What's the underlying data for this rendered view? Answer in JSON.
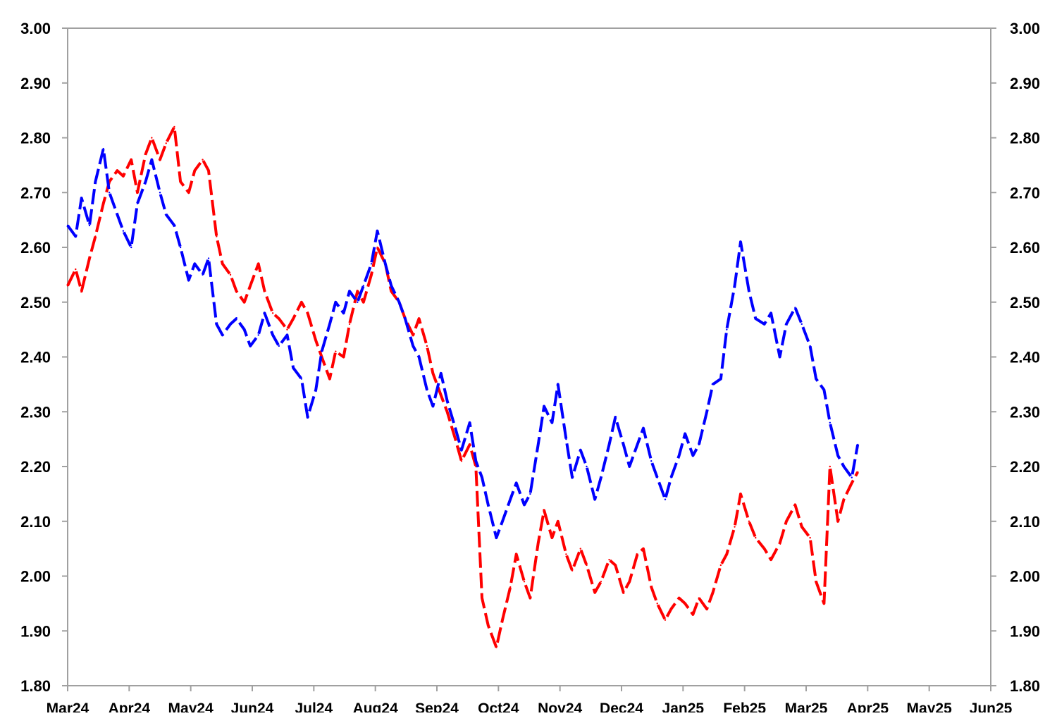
{
  "chart_data": {
    "type": "line",
    "title": "",
    "xlabel": "",
    "ylabel": "",
    "ylim": [
      1.8,
      3.0
    ],
    "y_ticks": [
      "1.80",
      "1.90",
      "2.00",
      "2.10",
      "2.20",
      "2.30",
      "2.40",
      "2.50",
      "2.60",
      "2.70",
      "2.80",
      "2.90",
      "3.00"
    ],
    "y_axis_right_mirror": true,
    "x_ticks": [
      "Mar24",
      "Apr24",
      "May24",
      "Jun24",
      "Jul24",
      "Aug24",
      "Sep24",
      "Oct24",
      "Nov24",
      "Dec24",
      "Jan25",
      "Feb25",
      "Mar25",
      "Apr25",
      "May25",
      "Jun25"
    ],
    "xlim": [
      "Mar24",
      "Jun25"
    ],
    "grid": false,
    "legend": "none",
    "line_style": "dashed",
    "series": [
      {
        "color": "#ff0000",
        "points": [
          [
            "2024-03-01",
            2.53
          ],
          [
            "2024-03-05",
            2.56
          ],
          [
            "2024-03-08",
            2.52
          ],
          [
            "2024-03-12",
            2.58
          ],
          [
            "2024-03-15",
            2.62
          ],
          [
            "2024-03-19",
            2.68
          ],
          [
            "2024-03-22",
            2.72
          ],
          [
            "2024-03-26",
            2.74
          ],
          [
            "2024-03-29",
            2.73
          ],
          [
            "2024-04-02",
            2.76
          ],
          [
            "2024-04-05",
            2.7
          ],
          [
            "2024-04-09",
            2.77
          ],
          [
            "2024-04-12",
            2.8
          ],
          [
            "2024-04-16",
            2.76
          ],
          [
            "2024-04-19",
            2.79
          ],
          [
            "2024-04-23",
            2.82
          ],
          [
            "2024-04-26",
            2.72
          ],
          [
            "2024-04-30",
            2.7
          ],
          [
            "2024-05-03",
            2.74
          ],
          [
            "2024-05-07",
            2.76
          ],
          [
            "2024-05-10",
            2.74
          ],
          [
            "2024-05-14",
            2.62
          ],
          [
            "2024-05-17",
            2.57
          ],
          [
            "2024-05-21",
            2.55
          ],
          [
            "2024-05-24",
            2.52
          ],
          [
            "2024-05-28",
            2.5
          ],
          [
            "2024-05-31",
            2.53
          ],
          [
            "2024-06-04",
            2.57
          ],
          [
            "2024-06-07",
            2.52
          ],
          [
            "2024-06-11",
            2.48
          ],
          [
            "2024-06-14",
            2.47
          ],
          [
            "2024-06-18",
            2.45
          ],
          [
            "2024-06-21",
            2.47
          ],
          [
            "2024-06-25",
            2.5
          ],
          [
            "2024-06-28",
            2.48
          ],
          [
            "2024-07-02",
            2.43
          ],
          [
            "2024-07-05",
            2.4
          ],
          [
            "2024-07-09",
            2.36
          ],
          [
            "2024-07-12",
            2.41
          ],
          [
            "2024-07-16",
            2.4
          ],
          [
            "2024-07-19",
            2.46
          ],
          [
            "2024-07-23",
            2.52
          ],
          [
            "2024-07-26",
            2.5
          ],
          [
            "2024-07-30",
            2.55
          ],
          [
            "2024-08-02",
            2.6
          ],
          [
            "2024-08-06",
            2.57
          ],
          [
            "2024-08-09",
            2.52
          ],
          [
            "2024-08-13",
            2.5
          ],
          [
            "2024-08-16",
            2.47
          ],
          [
            "2024-08-20",
            2.44
          ],
          [
            "2024-08-23",
            2.47
          ],
          [
            "2024-08-27",
            2.42
          ],
          [
            "2024-08-30",
            2.37
          ],
          [
            "2024-09-03",
            2.33
          ],
          [
            "2024-09-06",
            2.3
          ],
          [
            "2024-09-10",
            2.25
          ],
          [
            "2024-09-13",
            2.21
          ],
          [
            "2024-09-17",
            2.24
          ],
          [
            "2024-09-20",
            2.2
          ],
          [
            "2024-09-23",
            1.96
          ],
          [
            "2024-09-26",
            1.91
          ],
          [
            "2024-09-30",
            1.87
          ],
          [
            "2024-10-03",
            1.92
          ],
          [
            "2024-10-07",
            1.98
          ],
          [
            "2024-10-10",
            2.04
          ],
          [
            "2024-10-14",
            1.99
          ],
          [
            "2024-10-17",
            1.96
          ],
          [
            "2024-10-21",
            2.06
          ],
          [
            "2024-10-24",
            2.12
          ],
          [
            "2024-10-28",
            2.07
          ],
          [
            "2024-10-31",
            2.1
          ],
          [
            "2024-11-04",
            2.04
          ],
          [
            "2024-11-07",
            2.01
          ],
          [
            "2024-11-11",
            2.05
          ],
          [
            "2024-11-14",
            2.02
          ],
          [
            "2024-11-18",
            1.97
          ],
          [
            "2024-11-21",
            1.99
          ],
          [
            "2024-11-25",
            2.03
          ],
          [
            "2024-11-28",
            2.02
          ],
          [
            "2024-12-02",
            1.97
          ],
          [
            "2024-12-05",
            1.99
          ],
          [
            "2024-12-09",
            2.04
          ],
          [
            "2024-12-12",
            2.05
          ],
          [
            "2024-12-16",
            1.98
          ],
          [
            "2024-12-19",
            1.95
          ],
          [
            "2024-12-23",
            1.92
          ],
          [
            "2024-12-26",
            1.94
          ],
          [
            "2024-12-30",
            1.96
          ],
          [
            "2025-01-02",
            1.95
          ],
          [
            "2025-01-06",
            1.93
          ],
          [
            "2025-01-09",
            1.96
          ],
          [
            "2025-01-13",
            1.94
          ],
          [
            "2025-01-16",
            1.97
          ],
          [
            "2025-01-20",
            2.02
          ],
          [
            "2025-01-23",
            2.04
          ],
          [
            "2025-01-27",
            2.09
          ],
          [
            "2025-01-30",
            2.15
          ],
          [
            "2025-02-03",
            2.1
          ],
          [
            "2025-02-06",
            2.07
          ],
          [
            "2025-02-10",
            2.05
          ],
          [
            "2025-02-13",
            2.03
          ],
          [
            "2025-02-17",
            2.06
          ],
          [
            "2025-02-20",
            2.1
          ],
          [
            "2025-02-24",
            2.13
          ],
          [
            "2025-02-27",
            2.09
          ],
          [
            "2025-03-03",
            2.07
          ],
          [
            "2025-03-06",
            1.99
          ],
          [
            "2025-03-10",
            1.95
          ],
          [
            "2025-03-13",
            2.2
          ],
          [
            "2025-03-17",
            2.1
          ],
          [
            "2025-03-20",
            2.14
          ],
          [
            "2025-03-24",
            2.17
          ],
          [
            "2025-03-27",
            2.19
          ]
        ]
      },
      {
        "color": "#0000ff",
        "points": [
          [
            "2024-03-01",
            2.64
          ],
          [
            "2024-03-05",
            2.62
          ],
          [
            "2024-03-08",
            2.69
          ],
          [
            "2024-03-12",
            2.64
          ],
          [
            "2024-03-15",
            2.72
          ],
          [
            "2024-03-19",
            2.78
          ],
          [
            "2024-03-22",
            2.7
          ],
          [
            "2024-03-26",
            2.66
          ],
          [
            "2024-03-29",
            2.63
          ],
          [
            "2024-04-02",
            2.6
          ],
          [
            "2024-04-05",
            2.68
          ],
          [
            "2024-04-09",
            2.72
          ],
          [
            "2024-04-12",
            2.76
          ],
          [
            "2024-04-16",
            2.7
          ],
          [
            "2024-04-19",
            2.66
          ],
          [
            "2024-04-23",
            2.64
          ],
          [
            "2024-04-26",
            2.6
          ],
          [
            "2024-04-30",
            2.54
          ],
          [
            "2024-05-03",
            2.57
          ],
          [
            "2024-05-07",
            2.55
          ],
          [
            "2024-05-10",
            2.58
          ],
          [
            "2024-05-14",
            2.46
          ],
          [
            "2024-05-17",
            2.44
          ],
          [
            "2024-05-21",
            2.46
          ],
          [
            "2024-05-24",
            2.47
          ],
          [
            "2024-05-28",
            2.45
          ],
          [
            "2024-05-31",
            2.42
          ],
          [
            "2024-06-04",
            2.44
          ],
          [
            "2024-06-07",
            2.48
          ],
          [
            "2024-06-11",
            2.44
          ],
          [
            "2024-06-14",
            2.42
          ],
          [
            "2024-06-18",
            2.44
          ],
          [
            "2024-06-21",
            2.38
          ],
          [
            "2024-06-25",
            2.36
          ],
          [
            "2024-06-28",
            2.29
          ],
          [
            "2024-07-02",
            2.34
          ],
          [
            "2024-07-05",
            2.41
          ],
          [
            "2024-07-09",
            2.46
          ],
          [
            "2024-07-12",
            2.5
          ],
          [
            "2024-07-16",
            2.48
          ],
          [
            "2024-07-19",
            2.52
          ],
          [
            "2024-07-23",
            2.5
          ],
          [
            "2024-07-26",
            2.53
          ],
          [
            "2024-07-30",
            2.57
          ],
          [
            "2024-08-02",
            2.63
          ],
          [
            "2024-08-06",
            2.57
          ],
          [
            "2024-08-09",
            2.53
          ],
          [
            "2024-08-13",
            2.5
          ],
          [
            "2024-08-16",
            2.47
          ],
          [
            "2024-08-20",
            2.42
          ],
          [
            "2024-08-23",
            2.4
          ],
          [
            "2024-08-27",
            2.34
          ],
          [
            "2024-08-30",
            2.31
          ],
          [
            "2024-09-03",
            2.37
          ],
          [
            "2024-09-06",
            2.32
          ],
          [
            "2024-09-10",
            2.27
          ],
          [
            "2024-09-13",
            2.23
          ],
          [
            "2024-09-17",
            2.28
          ],
          [
            "2024-09-20",
            2.21
          ],
          [
            "2024-09-23",
            2.18
          ],
          [
            "2024-09-26",
            2.13
          ],
          [
            "2024-09-30",
            2.07
          ],
          [
            "2024-10-03",
            2.1
          ],
          [
            "2024-10-07",
            2.14
          ],
          [
            "2024-10-10",
            2.17
          ],
          [
            "2024-10-14",
            2.13
          ],
          [
            "2024-10-17",
            2.15
          ],
          [
            "2024-10-21",
            2.24
          ],
          [
            "2024-10-24",
            2.31
          ],
          [
            "2024-10-28",
            2.28
          ],
          [
            "2024-10-31",
            2.35
          ],
          [
            "2024-11-04",
            2.25
          ],
          [
            "2024-11-07",
            2.18
          ],
          [
            "2024-11-11",
            2.23
          ],
          [
            "2024-11-14",
            2.2
          ],
          [
            "2024-11-18",
            2.14
          ],
          [
            "2024-11-21",
            2.18
          ],
          [
            "2024-11-25",
            2.24
          ],
          [
            "2024-11-28",
            2.29
          ],
          [
            "2024-12-02",
            2.24
          ],
          [
            "2024-12-05",
            2.2
          ],
          [
            "2024-12-09",
            2.24
          ],
          [
            "2024-12-12",
            2.27
          ],
          [
            "2024-12-16",
            2.21
          ],
          [
            "2024-12-19",
            2.18
          ],
          [
            "2024-12-23",
            2.14
          ],
          [
            "2024-12-26",
            2.18
          ],
          [
            "2024-12-30",
            2.22
          ],
          [
            "2025-01-02",
            2.26
          ],
          [
            "2025-01-06",
            2.22
          ],
          [
            "2025-01-09",
            2.24
          ],
          [
            "2025-01-13",
            2.3
          ],
          [
            "2025-01-16",
            2.35
          ],
          [
            "2025-01-20",
            2.36
          ],
          [
            "2025-01-23",
            2.45
          ],
          [
            "2025-01-27",
            2.53
          ],
          [
            "2025-01-30",
            2.61
          ],
          [
            "2025-02-03",
            2.52
          ],
          [
            "2025-02-06",
            2.47
          ],
          [
            "2025-02-10",
            2.46
          ],
          [
            "2025-02-13",
            2.48
          ],
          [
            "2025-02-17",
            2.4
          ],
          [
            "2025-02-20",
            2.46
          ],
          [
            "2025-02-24",
            2.49
          ],
          [
            "2025-02-27",
            2.46
          ],
          [
            "2025-03-03",
            2.42
          ],
          [
            "2025-03-06",
            2.36
          ],
          [
            "2025-03-10",
            2.34
          ],
          [
            "2025-03-13",
            2.28
          ],
          [
            "2025-03-17",
            2.22
          ],
          [
            "2025-03-20",
            2.2
          ],
          [
            "2025-03-24",
            2.18
          ],
          [
            "2025-03-27",
            2.24
          ]
        ]
      }
    ]
  }
}
